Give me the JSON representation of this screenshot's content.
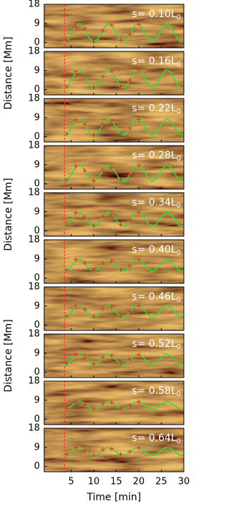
{
  "chart_data": [
    {
      "type": "line",
      "label": "s= 0.10L",
      "label_sub": "0",
      "xlim": [
        -1,
        30
      ],
      "ylim": [
        -2.5,
        18
      ],
      "xticks": [
        5,
        10,
        15,
        20,
        25,
        30
      ],
      "yticks": [
        0,
        9,
        18
      ],
      "reference_line_x": 3.5,
      "series": [
        {
          "color": "#33dd33",
          "x": [
            3,
            4,
            5,
            6,
            7,
            8,
            9,
            10,
            11,
            12,
            13,
            14,
            15,
            16,
            17,
            18,
            19,
            20,
            21,
            22,
            23,
            24,
            25,
            26,
            27,
            28,
            29,
            30
          ],
          "values": [
            0.6,
            0.4,
            3.7,
            7.7,
            8.9,
            6.3,
            2.1,
            0.0,
            1.8,
            5.9,
            8.8,
            8.0,
            4.2,
            0.6,
            0.4,
            3.7,
            7.7,
            8.9,
            6.3,
            2.1,
            0.0,
            1.8,
            5.9,
            8.8,
            8.0,
            4.2,
            0.6,
            0.4
          ]
        },
        {
          "color": "#ff2222",
          "marker": "+",
          "x": [
            4,
            6,
            8,
            10,
            12,
            14,
            16,
            18,
            20
          ],
          "values": [
            0.8,
            7.4,
            6.6,
            0.4,
            5.6,
            8.3,
            1.0,
            3.9,
            8.6
          ]
        }
      ]
    },
    {
      "type": "line",
      "label": "s= 0.16L",
      "label_sub": "0",
      "ylabel": "Distance [Mm]",
      "xlim": [
        -1,
        30
      ],
      "ylim": [
        -2.5,
        18
      ],
      "xticks": [
        5,
        10,
        15,
        20,
        25,
        30
      ],
      "yticks": [
        0,
        9,
        18
      ],
      "reference_line_x": 3.5,
      "series": [
        {
          "color": "#33dd33",
          "x": [
            3,
            4,
            5,
            6,
            7,
            8,
            9,
            10,
            11,
            12,
            13,
            14,
            15,
            16,
            17,
            18,
            19,
            20,
            21,
            22,
            23,
            24,
            25,
            26,
            27,
            28,
            29,
            30
          ],
          "values": [
            1.1,
            0.9,
            4.2,
            8.2,
            9.4,
            6.8,
            2.6,
            0.5,
            2.3,
            6.4,
            9.3,
            8.5,
            4.7,
            1.1,
            0.9,
            4.2,
            8.2,
            9.4,
            6.8,
            2.6,
            0.5,
            2.3,
            6.4,
            9.3,
            8.5,
            4.7,
            1.1,
            0.9
          ]
        },
        {
          "color": "#ff2222",
          "marker": "+",
          "x": [
            4,
            6,
            8,
            10,
            12,
            14,
            16,
            18,
            20
          ],
          "values": [
            1.3,
            8.6,
            6.5,
            0.9,
            6.1,
            8.8,
            1.5,
            4.5,
            9.0
          ]
        }
      ]
    },
    {
      "type": "line",
      "label": "s= 0.22L",
      "label_sub": "0",
      "xlim": [
        -1,
        30
      ],
      "ylim": [
        -2.5,
        18
      ],
      "xticks": [
        5,
        10,
        15,
        20,
        25,
        30
      ],
      "yticks": [
        0,
        9,
        18
      ],
      "reference_line_x": 3.5,
      "series": [
        {
          "color": "#33dd33",
          "x": [
            3,
            4,
            5,
            6,
            7,
            8,
            9,
            10,
            11,
            12,
            13,
            14,
            15,
            16,
            17,
            18,
            19,
            20,
            21,
            22,
            23,
            24,
            25,
            26,
            27,
            28,
            29,
            30
          ],
          "values": [
            1.1,
            0.9,
            3.8,
            7.4,
            8.4,
            6.1,
            2.4,
            0.5,
            2.1,
            5.7,
            8.3,
            7.6,
            4.2,
            1.1,
            0.9,
            3.8,
            7.4,
            8.4,
            6.1,
            2.4,
            0.5,
            2.1,
            5.7,
            8.3,
            7.6,
            4.2,
            1.1,
            0.9
          ]
        },
        {
          "color": "#ff2222",
          "marker": "+",
          "x": [
            4,
            6,
            8,
            10,
            12,
            14,
            16,
            18,
            20
          ],
          "values": [
            1.2,
            7.9,
            5.8,
            0.8,
            6.0,
            7.3,
            1.4,
            4.1,
            8.1
          ]
        }
      ]
    },
    {
      "type": "line",
      "label": "s= 0.28L",
      "label_sub": "0",
      "xlim": [
        -1,
        30
      ],
      "ylim": [
        -2.5,
        18
      ],
      "xticks": [
        5,
        10,
        15,
        20,
        25,
        30
      ],
      "yticks": [
        0,
        9,
        18
      ],
      "reference_line_x": 3.5,
      "series": [
        {
          "color": "#33dd33",
          "x": [
            3,
            4,
            5,
            6,
            7,
            8,
            9,
            10,
            11,
            12,
            13,
            14,
            15,
            16,
            17,
            18,
            19,
            20,
            21,
            22,
            23,
            24,
            25,
            26,
            27,
            28,
            29,
            30
          ],
          "values": [
            1.6,
            1.4,
            4.3,
            7.9,
            8.9,
            6.6,
            2.9,
            1.0,
            2.6,
            6.2,
            8.8,
            8.1,
            4.7,
            1.6,
            1.4,
            4.3,
            7.9,
            8.9,
            6.6,
            2.9,
            1.0,
            2.6,
            6.2,
            8.8,
            8.1,
            4.7,
            1.6,
            1.4
          ]
        },
        {
          "color": "#ff2222",
          "marker": "+",
          "x": [
            4,
            6,
            8,
            10,
            12,
            14,
            16,
            18,
            20
          ],
          "values": [
            1.8,
            8.3,
            6.3,
            1.4,
            6.5,
            7.8,
            2.0,
            4.6,
            8.6
          ]
        }
      ]
    },
    {
      "type": "line",
      "label": "s= 0.34L",
      "label_sub": "0",
      "ylabel": "Distance [Mm]",
      "xlim": [
        -1,
        30
      ],
      "ylim": [
        -2.5,
        18
      ],
      "xticks": [
        5,
        10,
        15,
        20,
        25,
        30
      ],
      "yticks": [
        0,
        9,
        18
      ],
      "reference_line_x": 3.5,
      "series": [
        {
          "color": "#33dd33",
          "x": [
            3,
            4,
            5,
            6,
            7,
            8,
            9,
            10,
            11,
            12,
            13,
            14,
            15,
            16,
            17,
            18,
            19,
            20,
            21,
            22,
            23,
            24,
            25,
            26,
            27,
            28,
            29,
            30
          ],
          "values": [
            2.5,
            2.3,
            4.9,
            8.0,
            8.9,
            6.9,
            3.7,
            2.0,
            3.4,
            6.6,
            8.9,
            8.2,
            5.3,
            2.5,
            2.3,
            4.9,
            8.0,
            8.9,
            6.9,
            3.7,
            2.0,
            3.4,
            6.6,
            8.9,
            8.2,
            5.3,
            2.5,
            2.3
          ]
        },
        {
          "color": "#ff2222",
          "marker": "+",
          "x": [
            4,
            6,
            8,
            10,
            12,
            14,
            16,
            18,
            20
          ],
          "values": [
            2.7,
            8.5,
            6.6,
            2.4,
            6.9,
            7.9,
            2.9,
            5.2,
            8.6
          ]
        }
      ]
    },
    {
      "type": "line",
      "label": "s= 0.40L",
      "label_sub": "0",
      "xlim": [
        -1,
        30
      ],
      "ylim": [
        -2.5,
        18
      ],
      "xticks": [
        5,
        10,
        15,
        20,
        25,
        30
      ],
      "yticks": [
        0,
        9,
        18
      ],
      "reference_line_x": 3.5,
      "series": [
        {
          "color": "#33dd33",
          "x": [
            3,
            4,
            5,
            6,
            7,
            8,
            9,
            10,
            11,
            12,
            13,
            14,
            15,
            16,
            17,
            18,
            19,
            20,
            21,
            22,
            23,
            24,
            25,
            26,
            27,
            28,
            29,
            30
          ],
          "values": [
            3.4,
            3.3,
            5.5,
            8.2,
            8.9,
            7.2,
            4.4,
            3.0,
            4.2,
            6.9,
            8.9,
            8.3,
            5.8,
            3.4,
            3.3,
            5.5,
            8.2,
            8.9,
            7.2,
            4.4,
            3.0,
            4.2,
            6.9,
            8.9,
            8.3,
            5.8,
            3.4,
            3.3
          ]
        },
        {
          "color": "#ff2222",
          "marker": "+",
          "x": [
            4,
            6,
            8,
            10,
            12,
            14,
            16,
            18,
            20
          ],
          "values": [
            3.7,
            8.7,
            6.9,
            3.4,
            7.2,
            8.0,
            3.8,
            5.8,
            8.6
          ]
        }
      ]
    },
    {
      "type": "line",
      "label": "s= 0.46L",
      "label_sub": "0",
      "xlim": [
        -1,
        30
      ],
      "ylim": [
        -2.5,
        18
      ],
      "xticks": [
        5,
        10,
        15,
        20,
        25,
        30
      ],
      "yticks": [
        0,
        9,
        18
      ],
      "reference_line_x": 3.5,
      "series": [
        {
          "color": "#33dd33",
          "x": [
            3,
            4,
            5,
            6,
            7,
            8,
            9,
            10,
            11,
            12,
            13,
            14,
            15,
            16,
            17,
            18,
            19,
            20,
            21,
            22,
            23,
            24,
            25,
            26,
            27,
            28,
            29,
            30
          ],
          "values": [
            3.9,
            3.8,
            6.0,
            8.7,
            9.4,
            7.7,
            4.9,
            3.5,
            4.7,
            7.4,
            9.4,
            8.8,
            6.3,
            3.9,
            3.8,
            6.0,
            8.7,
            9.4,
            7.7,
            4.9,
            3.5,
            4.7,
            7.4,
            9.4,
            8.8,
            6.3,
            3.9,
            3.8
          ]
        },
        {
          "color": "#ff2222",
          "marker": "+",
          "x": [
            4,
            6,
            8,
            10,
            12,
            14,
            16,
            18,
            20
          ],
          "values": [
            4.2,
            9.2,
            7.4,
            3.9,
            7.7,
            8.5,
            4.3,
            6.3,
            9.1
          ]
        }
      ]
    },
    {
      "type": "line",
      "label": "s= 0.52L",
      "label_sub": "0",
      "ylabel": "Distance [Mm]",
      "xlim": [
        -1,
        30
      ],
      "ylim": [
        -2.5,
        18
      ],
      "xticks": [
        5,
        10,
        15,
        20,
        25,
        30
      ],
      "yticks": [
        0,
        9,
        18
      ],
      "reference_line_x": 3.5,
      "series": [
        {
          "color": "#33dd33",
          "x": [
            3,
            4,
            5,
            6,
            7,
            8,
            9,
            10,
            11,
            12,
            13,
            14,
            15,
            16,
            17,
            18,
            19,
            20,
            21,
            22,
            23,
            24,
            25,
            26,
            27,
            28,
            29,
            30
          ],
          "values": [
            3.8,
            3.7,
            5.6,
            7.8,
            8.5,
            7.0,
            4.7,
            3.5,
            4.5,
            6.8,
            8.4,
            8.0,
            5.8,
            3.8,
            3.7,
            5.6,
            7.8,
            8.5,
            7.0,
            4.7,
            3.5,
            4.5,
            6.8,
            8.4,
            8.0,
            5.8,
            3.8,
            3.7
          ]
        },
        {
          "color": "#ff2222",
          "marker": "+",
          "x": [
            4,
            6,
            8,
            10,
            12,
            14,
            16,
            18,
            20
          ],
          "values": [
            4.1,
            8.3,
            6.7,
            3.9,
            7.1,
            7.7,
            4.2,
            5.9,
            8.2
          ]
        }
      ]
    },
    {
      "type": "line",
      "label": "s= 0.58L",
      "label_sub": "0",
      "xlim": [
        -1,
        30
      ],
      "ylim": [
        -2.5,
        18
      ],
      "xticks": [
        5,
        10,
        15,
        20,
        25,
        30
      ],
      "yticks": [
        0,
        9,
        18
      ],
      "reference_line_x": 3.5,
      "series": [
        {
          "color": "#33dd33",
          "x": [
            3,
            4,
            5,
            6,
            7,
            8,
            9,
            10,
            11,
            12,
            13,
            14,
            15,
            16,
            17,
            18,
            19,
            20,
            21,
            22,
            23,
            24,
            25,
            26,
            27,
            28,
            29,
            30
          ],
          "values": [
            4.8,
            4.7,
            6.2,
            7.9,
            8.5,
            7.3,
            5.4,
            4.5,
            5.3,
            7.1,
            8.4,
            8.1,
            6.4,
            4.8,
            4.7,
            6.2,
            7.9,
            8.5,
            7.3,
            5.4,
            4.5,
            5.3,
            7.1,
            8.4,
            8.1,
            6.4,
            4.8,
            4.7
          ]
        },
        {
          "color": "#ff2222",
          "marker": "+",
          "x": [
            4,
            6,
            8,
            10,
            12,
            14,
            16,
            18,
            20
          ],
          "values": [
            5.1,
            8.4,
            7.0,
            4.9,
            7.4,
            7.8,
            5.2,
            6.5,
            8.2
          ]
        }
      ]
    },
    {
      "type": "line",
      "label": "s= 0.64L",
      "label_sub": "0",
      "xlabel": "Time [min]",
      "xlim": [
        -1,
        30
      ],
      "ylim": [
        -2.5,
        18
      ],
      "xticks": [
        5,
        10,
        15,
        20,
        25,
        30
      ],
      "yticks": [
        0,
        9,
        18
      ],
      "reference_line_x": 3.5,
      "series": [
        {
          "color": "#33dd33",
          "x": [
            3,
            4,
            5,
            6,
            7,
            8,
            9,
            10,
            11,
            12,
            13,
            14,
            15,
            16,
            17,
            18,
            19,
            20,
            21,
            22,
            23,
            24,
            25,
            26,
            27,
            28,
            29,
            30
          ],
          "values": [
            5.3,
            5.2,
            6.7,
            8.4,
            9.0,
            7.8,
            5.9,
            5.0,
            5.8,
            7.6,
            8.9,
            8.6,
            6.9,
            5.3,
            5.2,
            6.7,
            8.4,
            9.0,
            7.8,
            5.9,
            5.0,
            5.8,
            7.6,
            8.9,
            8.6,
            6.9,
            5.3,
            5.2
          ]
        },
        {
          "color": "#ff2222",
          "marker": "+",
          "x": [
            4,
            6,
            8,
            10,
            12,
            14,
            16,
            18,
            20
          ],
          "values": [
            5.6,
            8.9,
            7.5,
            5.4,
            7.9,
            8.3,
            5.7,
            7.0,
            8.7
          ]
        }
      ]
    }
  ]
}
